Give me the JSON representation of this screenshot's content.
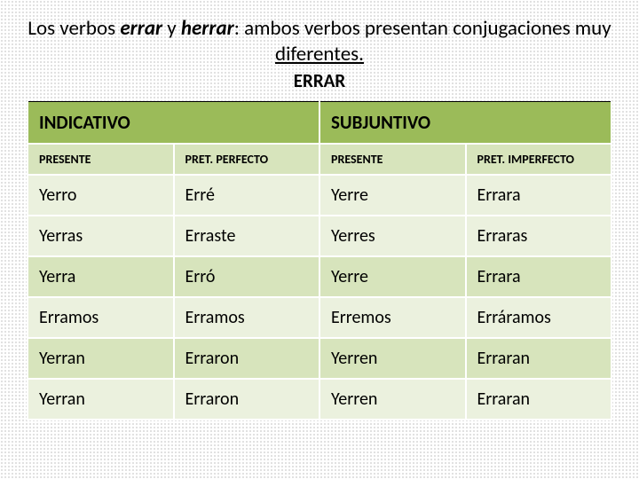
{
  "heading": {
    "prefix": "Los verbos ",
    "verb1": "errar",
    "mid": " y ",
    "verb2": "herrar",
    "rest": ": ambos verbos presentan conjugaciones muy ",
    "diff": "diferentes."
  },
  "verb_title": "ERRAR",
  "colors": {
    "mood_header_bg": "#9bbb59",
    "tense_header_bg": "#d7e4bc",
    "band_a_bg": "#ebf1de",
    "band_b_bg": "#d7e4bc",
    "cell_border": "#ffffff"
  },
  "moods": {
    "indicativo": "INDICATIVO",
    "subjuntivo": "SUBJUNTIVO"
  },
  "tenses": {
    "ind_presente": "PRESENTE",
    "ind_pret_perfecto": "PRET. PERFECTO",
    "subj_presente": "PRESENTE",
    "subj_pret_imperfecto": "PRET. IMPERFECTO"
  },
  "rows": [
    {
      "c0": "Yerro",
      "c1": "Erré",
      "c2": "Yerre",
      "c3": "Errara"
    },
    {
      "c0": "Yerras",
      "c1": "Erraste",
      "c2": "Yerres",
      "c3": "Erraras"
    },
    {
      "c0": "Yerra",
      "c1": "Erró",
      "c2": "Yerre",
      "c3": "Errara"
    },
    {
      "c0": "Erramos",
      "c1": "Erramos",
      "c2": "Erremos",
      "c3": "Erráramos"
    },
    {
      "c0": "Yerran",
      "c1": "Erraron",
      "c2": "Yerren",
      "c3": "Erraran"
    },
    {
      "c0": "Yerran",
      "c1": "Erraron",
      "c2": "Yerren",
      "c3": "Erraran"
    }
  ]
}
